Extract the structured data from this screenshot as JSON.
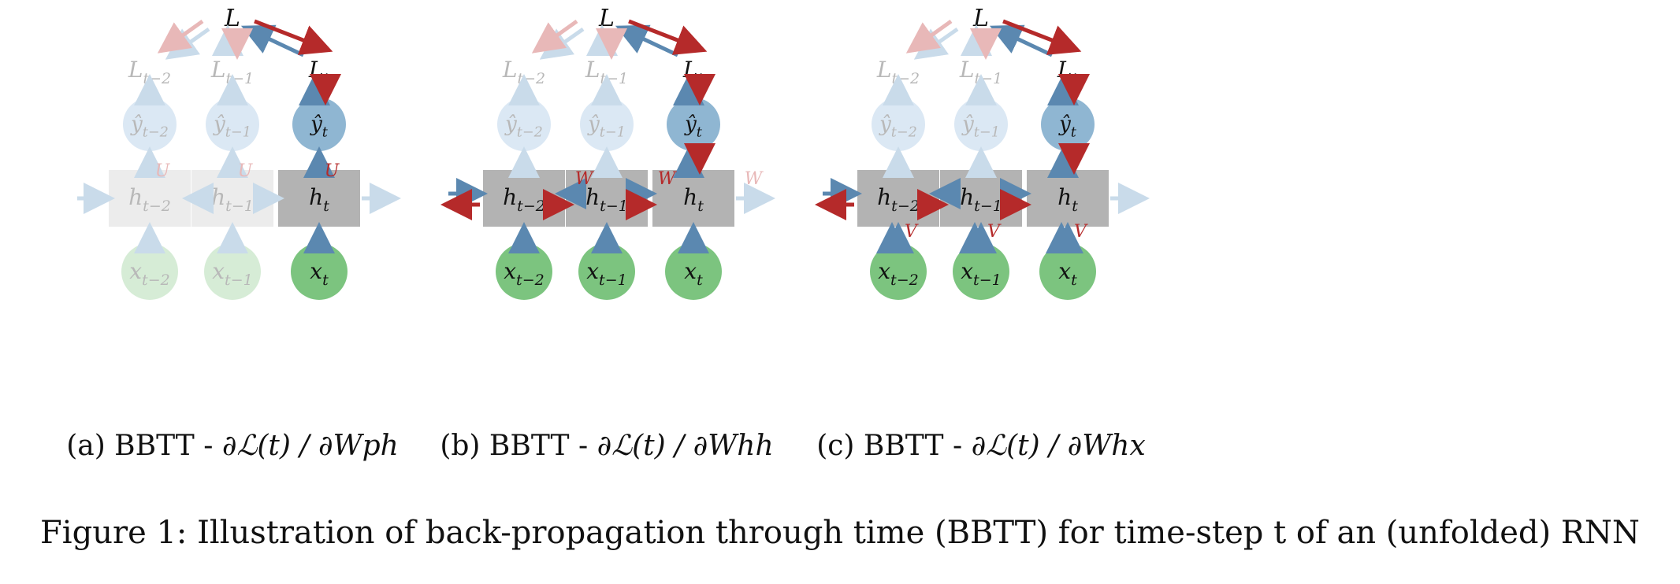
{
  "colors": {
    "forward_arrow": "#5b88b0",
    "backward_arrow": "#b52a2a",
    "hidden_box": "#b3b3b3",
    "output_circle": "#8fb6d2",
    "input_circle": "#7cc47f",
    "faded_output": "#dbe8f4",
    "faded_input": "#d6ecd6",
    "faded_hidden": "#ececec",
    "faded_text": "#b8b8b8"
  },
  "panels": [
    {
      "id": "a",
      "caption_prefix": "(a) BBTT - ",
      "caption_math": "∂ℒ(t) / ∂Wph",
      "loss": "L",
      "losses": [
        "Lt−2",
        "Lt−1",
        "Lt"
      ],
      "outputs": [
        "ŷt−2",
        "ŷt−1",
        "ŷt"
      ],
      "hiddens": [
        "ht−2",
        "ht−1",
        "ht"
      ],
      "inputs": [
        "xt−2",
        "xt−1",
        "xt"
      ],
      "weight_labels": [
        "U",
        "U",
        "U"
      ]
    },
    {
      "id": "b",
      "caption_prefix": "(b) BBTT - ",
      "caption_math": "∂ℒ(t) / ∂Whh",
      "loss": "L",
      "losses": [
        "Lt−2",
        "Lt−1",
        "Lt"
      ],
      "outputs": [
        "ŷt−2",
        "ŷt−1",
        "ŷt"
      ],
      "hiddens": [
        "ht−2",
        "ht−1",
        "ht"
      ],
      "inputs": [
        "xt−2",
        "xt−1",
        "xt"
      ],
      "weight_labels": [
        "W",
        "W",
        "W"
      ]
    },
    {
      "id": "c",
      "caption_prefix": "(c) BBTT - ",
      "caption_math": "∂ℒ(t) / ∂Whx",
      "loss": "L",
      "losses": [
        "Lt−2",
        "Lt−1",
        "Lt"
      ],
      "outputs": [
        "ŷt−2",
        "ŷt−1",
        "ŷt"
      ],
      "hiddens": [
        "ht−2",
        "ht−1",
        "ht"
      ],
      "inputs": [
        "xt−2",
        "xt−1",
        "xt"
      ],
      "weight_labels": [
        "V",
        "V",
        "V"
      ]
    }
  ],
  "figure_caption": "Figure 1: Illustration of back-propagation through time (BBTT) for time-step t of an (unfolded) RNN"
}
